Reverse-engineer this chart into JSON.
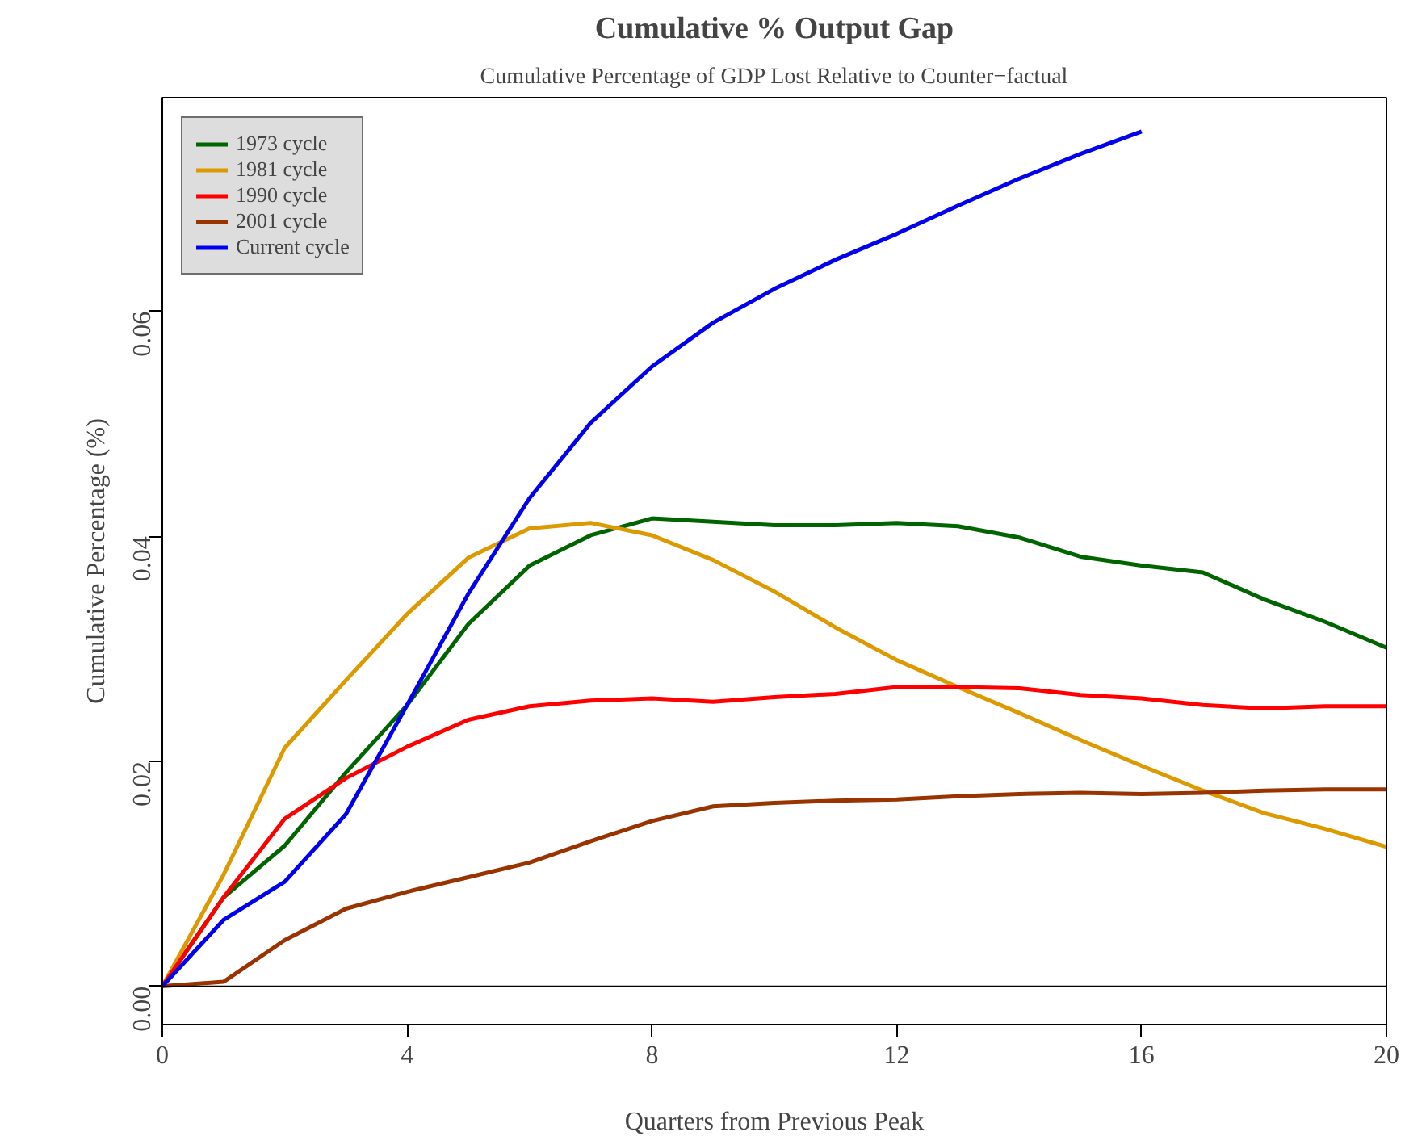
{
  "chart_data": {
    "type": "line",
    "title": "Cumulative % Output Gap",
    "subtitle": "Cumulative Percentage of GDP Lost Relative to Counter−factual",
    "xlabel": "Quarters from Previous Peak",
    "ylabel": "Cumulative Percentage (%)",
    "x": [
      0,
      1,
      2,
      3,
      4,
      5,
      6,
      7,
      8,
      9,
      10,
      11,
      12,
      13,
      14,
      15,
      16,
      17,
      18,
      19,
      20
    ],
    "series": [
      {
        "name": "1973 cycle",
        "color": "#006400",
        "values": [
          0,
          0.0079,
          0.0125,
          0.019,
          0.025,
          0.0322,
          0.0374,
          0.0401,
          0.0416,
          0.0413,
          0.041,
          0.041,
          0.0412,
          0.0409,
          0.0399,
          0.0382,
          0.0374,
          0.0368,
          0.0344,
          0.0324,
          0.0301
        ]
      },
      {
        "name": "1981 cycle",
        "color": "#dd9900",
        "values": [
          0,
          0.0099,
          0.0212,
          0.0272,
          0.0331,
          0.0381,
          0.0407,
          0.0412,
          0.0401,
          0.0379,
          0.0351,
          0.0319,
          0.029,
          0.0266,
          0.0243,
          0.0219,
          0.0196,
          0.0174,
          0.0154,
          0.014,
          0.0124
        ]
      },
      {
        "name": "1990 cycle",
        "color": "#ff0000",
        "values": [
          0,
          0.0079,
          0.0149,
          0.0185,
          0.0213,
          0.0237,
          0.0249,
          0.0254,
          0.0256,
          0.0253,
          0.0257,
          0.026,
          0.0266,
          0.0266,
          0.0265,
          0.0259,
          0.0256,
          0.025,
          0.0247,
          0.0249,
          0.0249
        ]
      },
      {
        "name": "2001 cycle",
        "color": "#993300",
        "values": [
          0,
          0.0004,
          0.0041,
          0.0069,
          0.0084,
          0.0097,
          0.011,
          0.0129,
          0.0147,
          0.016,
          0.0163,
          0.0165,
          0.0166,
          0.0169,
          0.0171,
          0.0172,
          0.0171,
          0.0172,
          0.0174,
          0.0175,
          0.0175
        ]
      },
      {
        "name": "Current cycle",
        "color": "#0000ee",
        "values": [
          0,
          0.0059,
          0.0093,
          0.0153,
          0.025,
          0.0349,
          0.0434,
          0.0501,
          0.0551,
          0.059,
          0.062,
          0.0646,
          0.0669,
          0.0694,
          0.0718,
          0.074,
          0.076,
          null,
          null,
          null,
          null
        ]
      }
    ],
    "xlim": [
      0,
      20
    ],
    "xticks": [
      0,
      4,
      8,
      12,
      16,
      20
    ],
    "ylim": [
      -0.0034,
      0.079
    ],
    "yticks": [
      {
        "value": 0,
        "label": "0.00"
      },
      {
        "value": 0.02,
        "label": "0.02"
      },
      {
        "value": 0.04,
        "label": "0.04"
      },
      {
        "value": 0.06,
        "label": "0.06"
      }
    ],
    "ref_lines": [
      {
        "axis": "y",
        "value": 0,
        "label": null,
        "color": "#000000"
      }
    ],
    "grid": false,
    "legend": "top left",
    "marker": "none",
    "line_style": "solid"
  }
}
